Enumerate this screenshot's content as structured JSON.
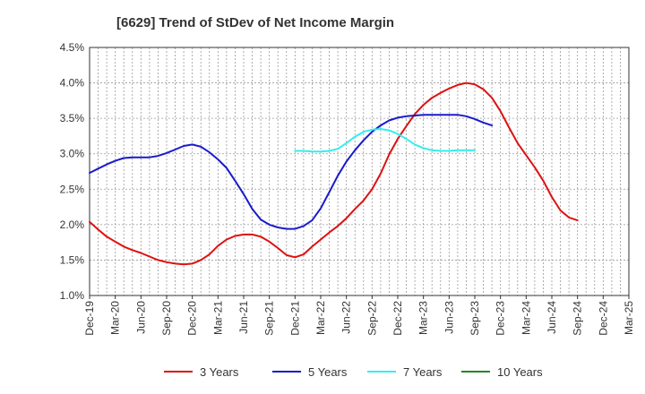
{
  "chart_data": {
    "type": "line",
    "title": "[6629]  Trend of StDev of Net Income Margin",
    "xlabel": "",
    "ylabel": "",
    "x_tick_labels": [
      "Dec-19",
      "Mar-20",
      "Jun-20",
      "Sep-20",
      "Dec-20",
      "Mar-21",
      "Jun-21",
      "Sep-21",
      "Dec-21",
      "Mar-22",
      "Jun-22",
      "Sep-22",
      "Dec-22",
      "Mar-23",
      "Jun-23",
      "Sep-23",
      "Dec-23",
      "Mar-24",
      "Jun-24",
      "Sep-24",
      "Dec-24",
      "Mar-25"
    ],
    "y_tick_labels": [
      "1.0%",
      "1.5%",
      "2.0%",
      "2.5%",
      "3.0%",
      "3.5%",
      "4.0%",
      "4.5%"
    ],
    "ylim": [
      1.0,
      4.5
    ],
    "grid": true,
    "legend_position": "bottom",
    "series": [
      {
        "name": "3 Years",
        "color": "#dd1111",
        "points": [
          {
            "x": "Dec-19",
            "y": 2.04
          },
          {
            "x": "Jan-20",
            "y": 1.93
          },
          {
            "x": "Feb-20",
            "y": 1.83
          },
          {
            "x": "Mar-20",
            "y": 1.76
          },
          {
            "x": "Apr-20",
            "y": 1.69
          },
          {
            "x": "May-20",
            "y": 1.64
          },
          {
            "x": "Jun-20",
            "y": 1.6
          },
          {
            "x": "Jul-20",
            "y": 1.55
          },
          {
            "x": "Aug-20",
            "y": 1.5
          },
          {
            "x": "Sep-20",
            "y": 1.47
          },
          {
            "x": "Oct-20",
            "y": 1.45
          },
          {
            "x": "Nov-20",
            "y": 1.44
          },
          {
            "x": "Dec-20",
            "y": 1.45
          },
          {
            "x": "Jan-21",
            "y": 1.5
          },
          {
            "x": "Feb-21",
            "y": 1.58
          },
          {
            "x": "Mar-21",
            "y": 1.7
          },
          {
            "x": "Apr-21",
            "y": 1.79
          },
          {
            "x": "May-21",
            "y": 1.84
          },
          {
            "x": "Jun-21",
            "y": 1.86
          },
          {
            "x": "Jul-21",
            "y": 1.86
          },
          {
            "x": "Aug-21",
            "y": 1.83
          },
          {
            "x": "Sep-21",
            "y": 1.76
          },
          {
            "x": "Oct-21",
            "y": 1.67
          },
          {
            "x": "Nov-21",
            "y": 1.57
          },
          {
            "x": "Dec-21",
            "y": 1.54
          },
          {
            "x": "Jan-22",
            "y": 1.58
          },
          {
            "x": "Feb-22",
            "y": 1.69
          },
          {
            "x": "Mar-22",
            "y": 1.79
          },
          {
            "x": "Apr-22",
            "y": 1.89
          },
          {
            "x": "May-22",
            "y": 1.98
          },
          {
            "x": "Jun-22",
            "y": 2.09
          },
          {
            "x": "Jul-22",
            "y": 2.22
          },
          {
            "x": "Aug-22",
            "y": 2.34
          },
          {
            "x": "Sep-22",
            "y": 2.5
          },
          {
            "x": "Oct-22",
            "y": 2.72
          },
          {
            "x": "Nov-22",
            "y": 2.99
          },
          {
            "x": "Dec-22",
            "y": 3.21
          },
          {
            "x": "Jan-23",
            "y": 3.39
          },
          {
            "x": "Feb-23",
            "y": 3.56
          },
          {
            "x": "Mar-23",
            "y": 3.69
          },
          {
            "x": "Apr-23",
            "y": 3.79
          },
          {
            "x": "May-23",
            "y": 3.86
          },
          {
            "x": "Jun-23",
            "y": 3.92
          },
          {
            "x": "Jul-23",
            "y": 3.97
          },
          {
            "x": "Aug-23",
            "y": 4.0
          },
          {
            "x": "Sep-23",
            "y": 3.98
          },
          {
            "x": "Oct-23",
            "y": 3.91
          },
          {
            "x": "Nov-23",
            "y": 3.79
          },
          {
            "x": "Dec-23",
            "y": 3.6
          },
          {
            "x": "Jan-24",
            "y": 3.37
          },
          {
            "x": "Feb-24",
            "y": 3.15
          },
          {
            "x": "Mar-24",
            "y": 2.98
          },
          {
            "x": "Apr-24",
            "y": 2.81
          },
          {
            "x": "May-24",
            "y": 2.62
          },
          {
            "x": "Jun-24",
            "y": 2.39
          },
          {
            "x": "Jul-24",
            "y": 2.2
          },
          {
            "x": "Aug-24",
            "y": 2.1
          },
          {
            "x": "Sep-24",
            "y": 2.06
          }
        ]
      },
      {
        "name": "5 Years",
        "color": "#1a1acc",
        "points": [
          {
            "x": "Dec-19",
            "y": 2.73
          },
          {
            "x": "Jan-20",
            "y": 2.79
          },
          {
            "x": "Feb-20",
            "y": 2.85
          },
          {
            "x": "Mar-20",
            "y": 2.9
          },
          {
            "x": "Apr-20",
            "y": 2.94
          },
          {
            "x": "May-20",
            "y": 2.95
          },
          {
            "x": "Jun-20",
            "y": 2.95
          },
          {
            "x": "Jul-20",
            "y": 2.95
          },
          {
            "x": "Aug-20",
            "y": 2.97
          },
          {
            "x": "Sep-20",
            "y": 3.01
          },
          {
            "x": "Oct-20",
            "y": 3.06
          },
          {
            "x": "Nov-20",
            "y": 3.11
          },
          {
            "x": "Dec-20",
            "y": 3.13
          },
          {
            "x": "Jan-21",
            "y": 3.1
          },
          {
            "x": "Feb-21",
            "y": 3.02
          },
          {
            "x": "Mar-21",
            "y": 2.92
          },
          {
            "x": "Apr-21",
            "y": 2.8
          },
          {
            "x": "May-21",
            "y": 2.62
          },
          {
            "x": "Jun-21",
            "y": 2.43
          },
          {
            "x": "Jul-21",
            "y": 2.22
          },
          {
            "x": "Aug-21",
            "y": 2.07
          },
          {
            "x": "Sep-21",
            "y": 2.0
          },
          {
            "x": "Oct-21",
            "y": 1.96
          },
          {
            "x": "Nov-21",
            "y": 1.94
          },
          {
            "x": "Dec-21",
            "y": 1.94
          },
          {
            "x": "Jan-22",
            "y": 1.98
          },
          {
            "x": "Feb-22",
            "y": 2.06
          },
          {
            "x": "Mar-22",
            "y": 2.23
          },
          {
            "x": "Apr-22",
            "y": 2.46
          },
          {
            "x": "May-22",
            "y": 2.69
          },
          {
            "x": "Jun-22",
            "y": 2.89
          },
          {
            "x": "Jul-22",
            "y": 3.05
          },
          {
            "x": "Aug-22",
            "y": 3.19
          },
          {
            "x": "Sep-22",
            "y": 3.31
          },
          {
            "x": "Oct-22",
            "y": 3.4
          },
          {
            "x": "Nov-22",
            "y": 3.47
          },
          {
            "x": "Dec-22",
            "y": 3.51
          },
          {
            "x": "Jan-23",
            "y": 3.53
          },
          {
            "x": "Feb-23",
            "y": 3.54
          },
          {
            "x": "Mar-23",
            "y": 3.55
          },
          {
            "x": "Apr-23",
            "y": 3.55
          },
          {
            "x": "May-23",
            "y": 3.55
          },
          {
            "x": "Jun-23",
            "y": 3.55
          },
          {
            "x": "Jul-23",
            "y": 3.55
          },
          {
            "x": "Aug-23",
            "y": 3.53
          },
          {
            "x": "Sep-23",
            "y": 3.49
          },
          {
            "x": "Oct-23",
            "y": 3.44
          },
          {
            "x": "Nov-23",
            "y": 3.4
          }
        ]
      },
      {
        "name": "7 Years",
        "color": "#33eeee",
        "points": [
          {
            "x": "Dec-21",
            "y": 3.04
          },
          {
            "x": "Jan-22",
            "y": 3.04
          },
          {
            "x": "Feb-22",
            "y": 3.03
          },
          {
            "x": "Mar-22",
            "y": 3.03
          },
          {
            "x": "Apr-22",
            "y": 3.04
          },
          {
            "x": "May-22",
            "y": 3.07
          },
          {
            "x": "Jun-22",
            "y": 3.15
          },
          {
            "x": "Jul-22",
            "y": 3.24
          },
          {
            "x": "Aug-22",
            "y": 3.31
          },
          {
            "x": "Sep-22",
            "y": 3.34
          },
          {
            "x": "Oct-22",
            "y": 3.35
          },
          {
            "x": "Nov-22",
            "y": 3.33
          },
          {
            "x": "Dec-22",
            "y": 3.28
          },
          {
            "x": "Jan-23",
            "y": 3.21
          },
          {
            "x": "Feb-23",
            "y": 3.13
          },
          {
            "x": "Mar-23",
            "y": 3.08
          },
          {
            "x": "Apr-23",
            "y": 3.05
          },
          {
            "x": "May-23",
            "y": 3.04
          },
          {
            "x": "Jun-23",
            "y": 3.04
          },
          {
            "x": "Jul-23",
            "y": 3.05
          },
          {
            "x": "Aug-23",
            "y": 3.05
          },
          {
            "x": "Sep-23",
            "y": 3.05
          }
        ]
      },
      {
        "name": "10 Years",
        "color": "#228822",
        "points": []
      }
    ]
  }
}
